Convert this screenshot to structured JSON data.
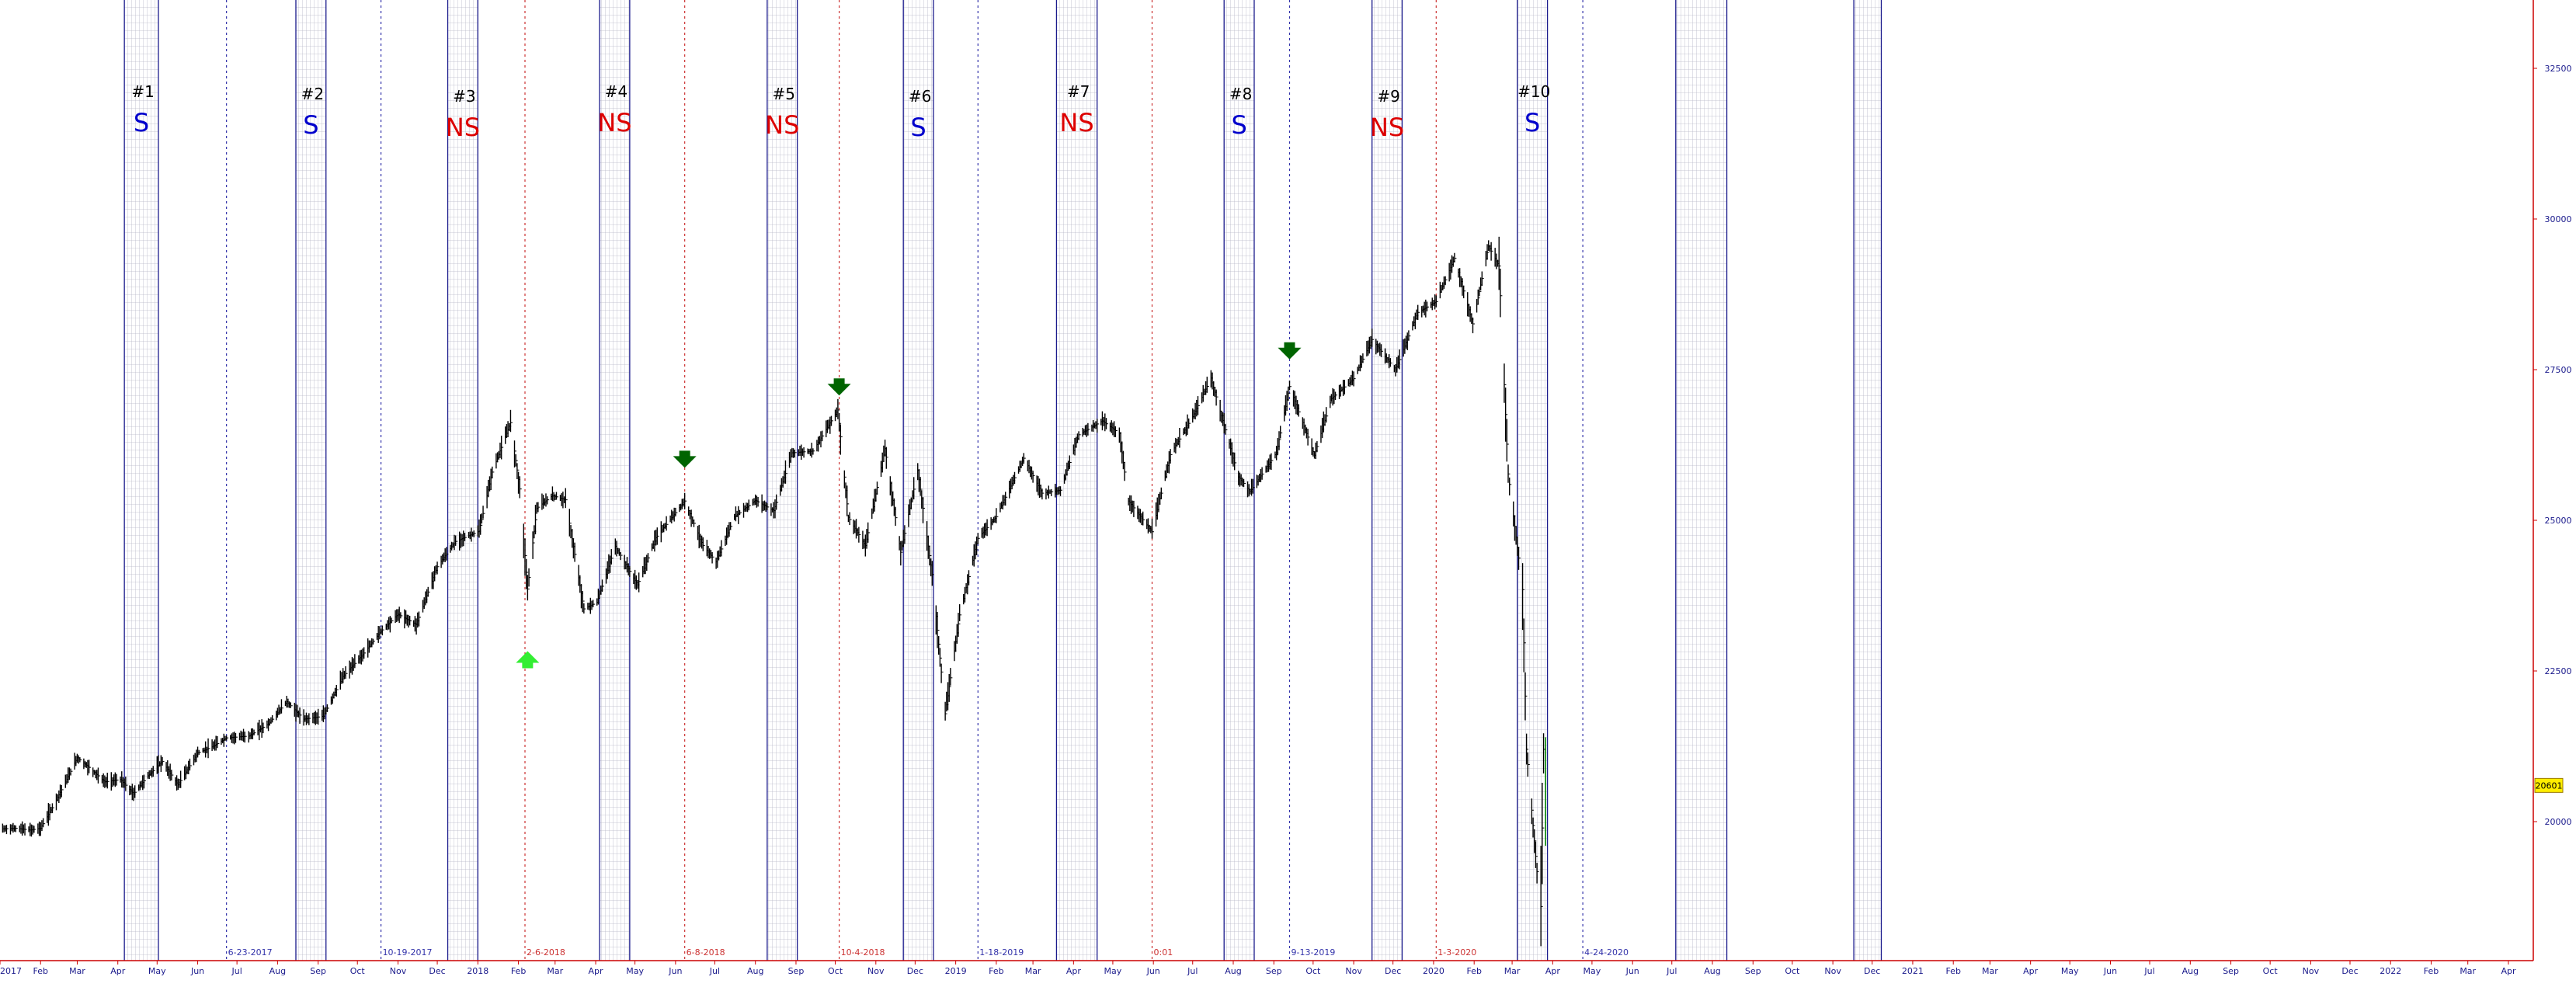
{
  "colors": {
    "background": "#ffffff",
    "price_bar": "#000000",
    "last_bar": "#008000",
    "axis_line": "#cc0000",
    "band_border": "#1a1a8c",
    "band_grid": "#b8b8c8",
    "signal_S": "#0000cc",
    "signal_NS": "#dd0000",
    "arrow_down": "#006400",
    "arrow_up": "#33ee33",
    "date_line_blue": "#3333aa",
    "date_line_red": "#cc3333",
    "price_tag_bg": "#ffee00"
  },
  "x_axis": {
    "ticks": [
      {
        "label": "2017",
        "date": "2017-01-01"
      },
      {
        "label": "Feb",
        "date": "2017-02-01"
      },
      {
        "label": "Mar",
        "date": "2017-03-01"
      },
      {
        "label": "Apr",
        "date": "2017-04-01"
      },
      {
        "label": "May",
        "date": "2017-05-01"
      },
      {
        "label": "Jun",
        "date": "2017-06-01"
      },
      {
        "label": "Jul",
        "date": "2017-07-01"
      },
      {
        "label": "Aug",
        "date": "2017-08-01"
      },
      {
        "label": "Sep",
        "date": "2017-09-01"
      },
      {
        "label": "Oct",
        "date": "2017-10-01"
      },
      {
        "label": "Nov",
        "date": "2017-11-01"
      },
      {
        "label": "Dec",
        "date": "2017-12-01"
      },
      {
        "label": "2018",
        "date": "2018-01-01"
      },
      {
        "label": "Feb",
        "date": "2018-02-01"
      },
      {
        "label": "Mar",
        "date": "2018-03-01"
      },
      {
        "label": "Apr",
        "date": "2018-04-01"
      },
      {
        "label": "May",
        "date": "2018-05-01"
      },
      {
        "label": "Jun",
        "date": "2018-06-01"
      },
      {
        "label": "Jul",
        "date": "2018-07-01"
      },
      {
        "label": "Aug",
        "date": "2018-08-01"
      },
      {
        "label": "Sep",
        "date": "2018-09-01"
      },
      {
        "label": "Oct",
        "date": "2018-10-01"
      },
      {
        "label": "Nov",
        "date": "2018-11-01"
      },
      {
        "label": "Dec",
        "date": "2018-12-01"
      },
      {
        "label": "2019",
        "date": "2019-01-01"
      },
      {
        "label": "Feb",
        "date": "2019-02-01"
      },
      {
        "label": "Mar",
        "date": "2019-03-01"
      },
      {
        "label": "Apr",
        "date": "2019-04-01"
      },
      {
        "label": "May",
        "date": "2019-05-01"
      },
      {
        "label": "Jun",
        "date": "2019-06-01"
      },
      {
        "label": "Jul",
        "date": "2019-07-01"
      },
      {
        "label": "Aug",
        "date": "2019-08-01"
      },
      {
        "label": "Sep",
        "date": "2019-09-01"
      },
      {
        "label": "Oct",
        "date": "2019-10-01"
      },
      {
        "label": "Nov",
        "date": "2019-11-01"
      },
      {
        "label": "Dec",
        "date": "2019-12-01"
      },
      {
        "label": "2020",
        "date": "2020-01-01"
      },
      {
        "label": "Feb",
        "date": "2020-02-01"
      },
      {
        "label": "Mar",
        "date": "2020-03-01"
      },
      {
        "label": "Apr",
        "date": "2020-04-01"
      },
      {
        "label": "May",
        "date": "2020-05-01"
      },
      {
        "label": "Jun",
        "date": "2020-06-01"
      },
      {
        "label": "Jul",
        "date": "2020-07-01"
      },
      {
        "label": "Aug",
        "date": "2020-08-01"
      },
      {
        "label": "Sep",
        "date": "2020-09-01"
      },
      {
        "label": "Oct",
        "date": "2020-10-01"
      },
      {
        "label": "Nov",
        "date": "2020-11-01"
      },
      {
        "label": "Dec",
        "date": "2020-12-01"
      },
      {
        "label": "2021",
        "date": "2021-01-01"
      },
      {
        "label": "Feb",
        "date": "2021-02-01"
      },
      {
        "label": "Mar",
        "date": "2021-03-01"
      },
      {
        "label": "Apr",
        "date": "2021-04-01"
      },
      {
        "label": "May",
        "date": "2021-05-01"
      },
      {
        "label": "Jun",
        "date": "2021-06-01"
      },
      {
        "label": "Jul",
        "date": "2021-07-01"
      },
      {
        "label": "Aug",
        "date": "2021-08-01"
      },
      {
        "label": "Sep",
        "date": "2021-09-01"
      },
      {
        "label": "Oct",
        "date": "2021-10-01"
      },
      {
        "label": "Nov",
        "date": "2021-11-01"
      },
      {
        "label": "Dec",
        "date": "2021-12-01"
      },
      {
        "label": "2022",
        "date": "2022-01-01"
      },
      {
        "label": "Feb",
        "date": "2022-02-01"
      },
      {
        "label": "Mar",
        "date": "2022-03-01"
      },
      {
        "label": "Apr",
        "date": "2022-04-01"
      }
    ]
  },
  "y_axis": {
    "ticks": [
      20000,
      22500,
      25000,
      27500,
      30000,
      32500
    ]
  },
  "current_price_tag": "20601",
  "chart_data": {
    "type": "bar",
    "x_type": "date",
    "xlim": [
      "2017-01-01",
      "2022-04-20"
    ],
    "ylim": [
      17500,
      33500
    ],
    "grid": false,
    "legend": "none",
    "series": [
      {
        "values_date_close": [
          [
            "2017-01-03",
            19880
          ],
          [
            "2017-01-13",
            19890
          ],
          [
            "2017-01-24",
            19860
          ],
          [
            "2017-02-01",
            19890
          ],
          [
            "2017-02-10",
            20230
          ],
          [
            "2017-02-21",
            20700
          ],
          [
            "2017-03-01",
            21060
          ],
          [
            "2017-03-10",
            20900
          ],
          [
            "2017-03-22",
            20660
          ],
          [
            "2017-04-03",
            20700
          ],
          [
            "2017-04-13",
            20460
          ],
          [
            "2017-04-24",
            20760
          ],
          [
            "2017-05-05",
            21000
          ],
          [
            "2017-05-17",
            20610
          ],
          [
            "2017-06-01",
            21140
          ],
          [
            "2017-06-12",
            21240
          ],
          [
            "2017-06-23",
            21390
          ],
          [
            "2017-07-10",
            21420
          ],
          [
            "2017-07-25",
            21620
          ],
          [
            "2017-08-08",
            21990
          ],
          [
            "2017-08-21",
            21700
          ],
          [
            "2017-09-05",
            21750
          ],
          [
            "2017-09-20",
            22410
          ],
          [
            "2017-10-05",
            22770
          ],
          [
            "2017-10-19",
            23160
          ],
          [
            "2017-11-01",
            23440
          ],
          [
            "2017-11-15",
            23270
          ],
          [
            "2017-12-01",
            24230
          ],
          [
            "2017-12-15",
            24650
          ],
          [
            "2018-01-02",
            24820
          ],
          [
            "2018-01-12",
            25800
          ],
          [
            "2018-01-26",
            26620
          ],
          [
            "2018-02-02",
            25520
          ],
          [
            "2018-02-08",
            23860
          ],
          [
            "2018-02-15",
            25200
          ],
          [
            "2018-02-27",
            25410
          ],
          [
            "2018-03-09",
            25340
          ],
          [
            "2018-03-23",
            23530
          ],
          [
            "2018-04-02",
            23640
          ],
          [
            "2018-04-16",
            24570
          ],
          [
            "2018-05-03",
            23930
          ],
          [
            "2018-05-17",
            24710
          ],
          [
            "2018-06-08",
            25320
          ],
          [
            "2018-06-22",
            24580
          ],
          [
            "2018-07-02",
            24310
          ],
          [
            "2018-07-16",
            25060
          ],
          [
            "2018-08-01",
            25330
          ],
          [
            "2018-08-15",
            25160
          ],
          [
            "2018-08-29",
            26120
          ],
          [
            "2018-09-14",
            26150
          ],
          [
            "2018-10-03",
            26830
          ],
          [
            "2018-10-11",
            25050
          ],
          [
            "2018-10-24",
            24580
          ],
          [
            "2018-11-08",
            26190
          ],
          [
            "2018-11-20",
            24470
          ],
          [
            "2018-12-03",
            25830
          ],
          [
            "2018-12-14",
            24100
          ],
          [
            "2018-12-24",
            21790
          ],
          [
            "2019-01-04",
            23430
          ],
          [
            "2019-01-18",
            24700
          ],
          [
            "2019-02-01",
            25060
          ],
          [
            "2019-02-22",
            26030
          ],
          [
            "2019-03-08",
            25450
          ],
          [
            "2019-03-22",
            25500
          ],
          [
            "2019-04-05",
            26420
          ],
          [
            "2019-04-23",
            26650
          ],
          [
            "2019-05-06",
            26440
          ],
          [
            "2019-05-13",
            25320
          ],
          [
            "2019-05-31",
            24810
          ],
          [
            "2019-06-14",
            26090
          ],
          [
            "2019-07-01",
            26720
          ],
          [
            "2019-07-15",
            27360
          ],
          [
            "2019-08-05",
            25720
          ],
          [
            "2019-08-14",
            25480
          ],
          [
            "2019-09-03",
            26120
          ],
          [
            "2019-09-13",
            27220
          ],
          [
            "2019-10-02",
            26080
          ],
          [
            "2019-10-15",
            27020
          ],
          [
            "2019-11-01",
            27350
          ],
          [
            "2019-11-15",
            28000
          ],
          [
            "2019-12-03",
            27500
          ],
          [
            "2019-12-20",
            28450
          ],
          [
            "2020-01-03",
            28630
          ],
          [
            "2020-01-17",
            29350
          ],
          [
            "2020-01-31",
            28260
          ],
          [
            "2020-02-12",
            29550
          ],
          [
            "2020-02-20",
            29220
          ],
          [
            "2020-02-27",
            25770
          ],
          [
            "2020-03-09",
            23850
          ],
          [
            "2020-03-12",
            21200
          ],
          [
            "2020-03-16",
            20190
          ],
          [
            "2020-03-20",
            19170
          ],
          [
            "2020-03-23",
            18590
          ],
          [
            "2020-03-25",
            21200
          ],
          [
            "2020-03-26",
            20601
          ]
        ]
      }
    ],
    "annotations": {
      "seasonal_bands": [
        {
          "number": "#1",
          "signal": "S",
          "start": "2017-04-06",
          "end": "2017-05-02"
        },
        {
          "number": "#2",
          "signal": "S",
          "start": "2017-08-15",
          "end": "2017-09-07"
        },
        {
          "number": "#3",
          "signal": "NS",
          "start": "2017-12-09",
          "end": "2018-01-01"
        },
        {
          "number": "#4",
          "signal": "NS",
          "start": "2018-04-04",
          "end": "2018-04-27"
        },
        {
          "number": "#5",
          "signal": "NS",
          "start": "2018-08-10",
          "end": "2018-09-02"
        },
        {
          "number": "#6",
          "signal": "S",
          "start": "2018-11-22",
          "end": "2018-12-15"
        },
        {
          "number": "#7",
          "signal": "NS",
          "start": "2019-03-19",
          "end": "2019-04-19"
        },
        {
          "number": "#8",
          "signal": "S",
          "start": "2019-07-25",
          "end": "2019-08-17"
        },
        {
          "number": "#9",
          "signal": "NS",
          "start": "2019-11-15",
          "end": "2019-12-08"
        },
        {
          "number": "#10",
          "signal": "S",
          "start": "2020-03-05",
          "end": "2020-03-28"
        },
        {
          "number": "",
          "signal": "",
          "start": "2020-07-04",
          "end": "2020-08-12"
        },
        {
          "number": "",
          "signal": "",
          "start": "2020-11-17",
          "end": "2020-12-08"
        }
      ],
      "date_lines": [
        {
          "label": "6-23-2017",
          "date": "2017-06-23",
          "color": "blue"
        },
        {
          "label": "10-19-2017",
          "date": "2017-10-19",
          "color": "blue"
        },
        {
          "label": "2-6-2018",
          "date": "2018-02-06",
          "color": "red"
        },
        {
          "label": "6-8-2018",
          "date": "2018-06-08",
          "color": "red"
        },
        {
          "label": "10-4-2018",
          "date": "2018-10-04",
          "color": "red"
        },
        {
          "label": "1-18-2019",
          "date": "2019-01-18",
          "color": "blue"
        },
        {
          "label": "0:01",
          "date": "2019-05-31",
          "color": "red"
        },
        {
          "label": "9-13-2019",
          "date": "2019-09-13",
          "color": "blue"
        },
        {
          "label": "1-3-2020",
          "date": "2020-01-03",
          "color": "red"
        },
        {
          "label": "4-24-2020",
          "date": "2020-04-24",
          "color": "blue"
        }
      ],
      "arrows": [
        {
          "direction": "up",
          "date": "2018-02-08",
          "price": 22700
        },
        {
          "direction": "down",
          "date": "2018-06-08",
          "price": 26000
        },
        {
          "direction": "down",
          "date": "2018-10-04",
          "price": 27200
        },
        {
          "direction": "down",
          "date": "2019-09-13",
          "price": 27800
        }
      ]
    }
  }
}
